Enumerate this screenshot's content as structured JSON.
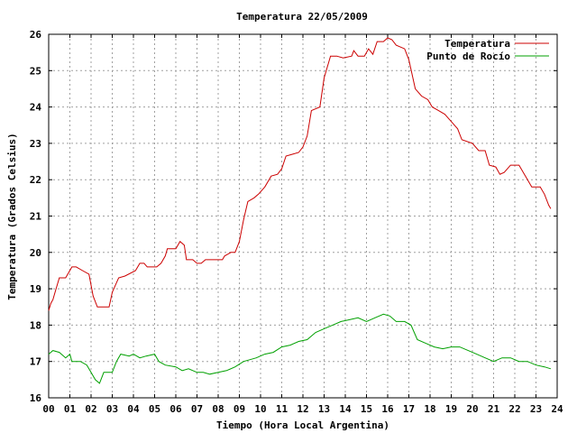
{
  "chart_data": {
    "type": "line",
    "title": "Temperatura 22/05/2009",
    "xlabel": "Tiempo (Hora Local Argentina)",
    "ylabel": "Temperatura (Grados Celsius)",
    "xlim": [
      0,
      24
    ],
    "ylim": [
      16,
      26
    ],
    "x_ticks": [
      "00",
      "01",
      "02",
      "03",
      "04",
      "05",
      "06",
      "07",
      "08",
      "09",
      "10",
      "11",
      "12",
      "13",
      "14",
      "15",
      "16",
      "17",
      "18",
      "19",
      "20",
      "21",
      "22",
      "23",
      "24"
    ],
    "y_ticks": [
      "16",
      "17",
      "18",
      "19",
      "20",
      "21",
      "22",
      "23",
      "24",
      "25",
      "26"
    ],
    "grid": true,
    "legend_position": "top-right",
    "series": [
      {
        "name": "Temperatura",
        "color": "#cc0000",
        "points": [
          [
            0.0,
            18.4
          ],
          [
            0.1,
            18.6
          ],
          [
            0.2,
            18.7
          ],
          [
            0.35,
            19.0
          ],
          [
            0.5,
            19.3
          ],
          [
            0.8,
            19.3
          ],
          [
            1.1,
            19.6
          ],
          [
            1.3,
            19.6
          ],
          [
            1.6,
            19.5
          ],
          [
            1.9,
            19.4
          ],
          [
            2.1,
            18.8
          ],
          [
            2.3,
            18.5
          ],
          [
            2.5,
            18.5
          ],
          [
            2.85,
            18.5
          ],
          [
            3.0,
            18.9
          ],
          [
            3.3,
            19.3
          ],
          [
            3.6,
            19.35
          ],
          [
            4.1,
            19.5
          ],
          [
            4.3,
            19.7
          ],
          [
            4.5,
            19.7
          ],
          [
            4.65,
            19.6
          ],
          [
            5.1,
            19.6
          ],
          [
            5.3,
            19.7
          ],
          [
            5.5,
            19.9
          ],
          [
            5.6,
            20.1
          ],
          [
            6.0,
            20.1
          ],
          [
            6.2,
            20.3
          ],
          [
            6.4,
            20.2
          ],
          [
            6.5,
            19.8
          ],
          [
            6.8,
            19.8
          ],
          [
            7.0,
            19.7
          ],
          [
            7.2,
            19.7
          ],
          [
            7.4,
            19.8
          ],
          [
            8.0,
            19.8
          ],
          [
            8.2,
            19.8
          ],
          [
            8.3,
            19.9
          ],
          [
            8.6,
            20.0
          ],
          [
            8.8,
            20.0
          ],
          [
            9.0,
            20.3
          ],
          [
            9.2,
            20.9
          ],
          [
            9.4,
            21.4
          ],
          [
            9.7,
            21.5
          ],
          [
            9.9,
            21.6
          ],
          [
            10.2,
            21.8
          ],
          [
            10.5,
            22.1
          ],
          [
            10.8,
            22.15
          ],
          [
            11.0,
            22.3
          ],
          [
            11.2,
            22.65
          ],
          [
            11.5,
            22.7
          ],
          [
            11.8,
            22.75
          ],
          [
            12.0,
            22.9
          ],
          [
            12.2,
            23.2
          ],
          [
            12.4,
            23.9
          ],
          [
            12.8,
            24.0
          ],
          [
            13.0,
            24.8
          ],
          [
            13.3,
            25.4
          ],
          [
            13.6,
            25.4
          ],
          [
            13.9,
            25.35
          ],
          [
            14.3,
            25.4
          ],
          [
            14.4,
            25.55
          ],
          [
            14.6,
            25.4
          ],
          [
            14.9,
            25.4
          ],
          [
            15.1,
            25.6
          ],
          [
            15.3,
            25.45
          ],
          [
            15.5,
            25.8
          ],
          [
            15.8,
            25.8
          ],
          [
            16.0,
            25.9
          ],
          [
            16.2,
            25.85
          ],
          [
            16.4,
            25.7
          ],
          [
            16.8,
            25.6
          ],
          [
            17.0,
            25.3
          ],
          [
            17.3,
            24.5
          ],
          [
            17.6,
            24.3
          ],
          [
            17.9,
            24.2
          ],
          [
            18.1,
            24.0
          ],
          [
            18.4,
            23.9
          ],
          [
            18.7,
            23.8
          ],
          [
            19.0,
            23.6
          ],
          [
            19.3,
            23.4
          ],
          [
            19.5,
            23.1
          ],
          [
            20.0,
            23.0
          ],
          [
            20.3,
            22.8
          ],
          [
            20.6,
            22.8
          ],
          [
            20.8,
            22.4
          ],
          [
            21.1,
            22.35
          ],
          [
            21.3,
            22.15
          ],
          [
            21.5,
            22.2
          ],
          [
            21.8,
            22.4
          ],
          [
            22.2,
            22.4
          ],
          [
            22.5,
            22.1
          ],
          [
            22.8,
            21.8
          ],
          [
            23.2,
            21.8
          ],
          [
            23.4,
            21.6
          ],
          [
            23.6,
            21.3
          ],
          [
            23.7,
            21.2
          ]
        ]
      },
      {
        "name": "Punto de Rocío",
        "color": "#00a000",
        "points": [
          [
            0.0,
            17.2
          ],
          [
            0.2,
            17.3
          ],
          [
            0.5,
            17.25
          ],
          [
            0.8,
            17.1
          ],
          [
            1.0,
            17.2
          ],
          [
            1.1,
            17.0
          ],
          [
            1.5,
            17.0
          ],
          [
            1.8,
            16.9
          ],
          [
            2.0,
            16.7
          ],
          [
            2.2,
            16.5
          ],
          [
            2.4,
            16.4
          ],
          [
            2.6,
            16.7
          ],
          [
            3.0,
            16.7
          ],
          [
            3.2,
            17.0
          ],
          [
            3.4,
            17.2
          ],
          [
            3.8,
            17.15
          ],
          [
            4.0,
            17.2
          ],
          [
            4.3,
            17.1
          ],
          [
            4.6,
            17.15
          ],
          [
            5.0,
            17.2
          ],
          [
            5.2,
            17.0
          ],
          [
            5.5,
            16.9
          ],
          [
            6.0,
            16.85
          ],
          [
            6.3,
            16.75
          ],
          [
            6.6,
            16.8
          ],
          [
            7.0,
            16.7
          ],
          [
            7.3,
            16.7
          ],
          [
            7.6,
            16.65
          ],
          [
            8.0,
            16.7
          ],
          [
            8.4,
            16.75
          ],
          [
            8.8,
            16.85
          ],
          [
            9.2,
            17.0
          ],
          [
            9.5,
            17.05
          ],
          [
            9.8,
            17.1
          ],
          [
            10.2,
            17.2
          ],
          [
            10.6,
            17.25
          ],
          [
            11.0,
            17.4
          ],
          [
            11.4,
            17.45
          ],
          [
            11.8,
            17.55
          ],
          [
            12.2,
            17.6
          ],
          [
            12.6,
            17.8
          ],
          [
            13.0,
            17.9
          ],
          [
            13.4,
            18.0
          ],
          [
            13.8,
            18.1
          ],
          [
            14.2,
            18.15
          ],
          [
            14.6,
            18.2
          ],
          [
            15.0,
            18.1
          ],
          [
            15.4,
            18.2
          ],
          [
            15.8,
            18.3
          ],
          [
            16.1,
            18.25
          ],
          [
            16.4,
            18.1
          ],
          [
            16.8,
            18.1
          ],
          [
            17.1,
            18.0
          ],
          [
            17.4,
            17.6
          ],
          [
            17.8,
            17.5
          ],
          [
            18.2,
            17.4
          ],
          [
            18.6,
            17.35
          ],
          [
            19.0,
            17.4
          ],
          [
            19.4,
            17.4
          ],
          [
            19.8,
            17.3
          ],
          [
            20.2,
            17.2
          ],
          [
            20.6,
            17.1
          ],
          [
            21.0,
            17.0
          ],
          [
            21.4,
            17.1
          ],
          [
            21.8,
            17.1
          ],
          [
            22.2,
            17.0
          ],
          [
            22.6,
            17.0
          ],
          [
            23.0,
            16.9
          ],
          [
            23.4,
            16.85
          ],
          [
            23.7,
            16.8
          ]
        ]
      }
    ]
  }
}
